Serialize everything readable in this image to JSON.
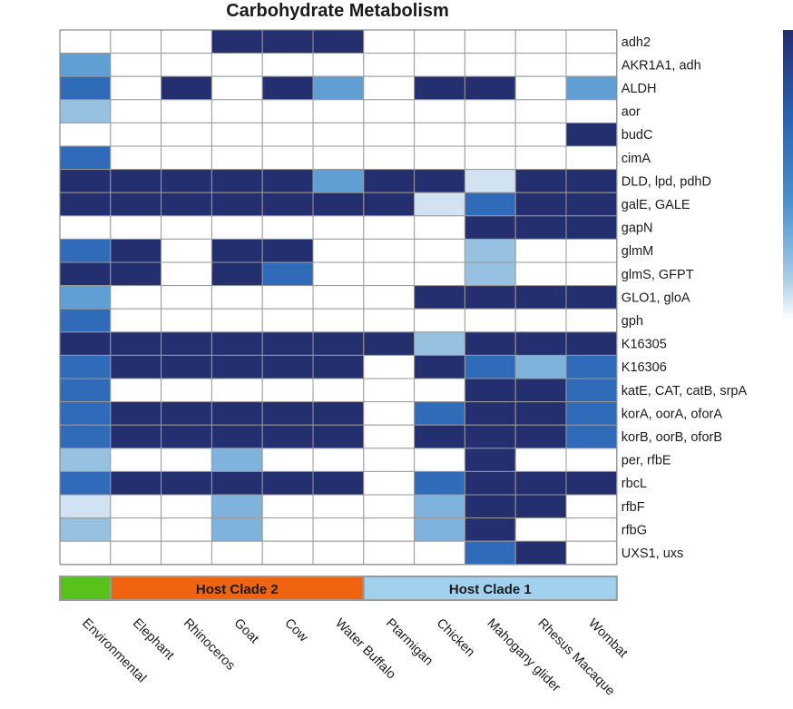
{
  "chart_data": {
    "type": "heatmap",
    "title": "Carbohydrate Metabolism",
    "columns": [
      "Environmental",
      "Elephant",
      "Rhinoceros",
      "Goat",
      "Cow",
      "Water Buffalo",
      "Ptarmigan",
      "Chicken",
      "Mahogany glider",
      "Rhesus Macaque",
      "Wombat"
    ],
    "rows": [
      "adh2",
      "AKR1A1, adh",
      "ALDH",
      "aor",
      "budC",
      "cimA",
      "DLD, lpd, pdhD",
      "galE, GALE",
      "gapN",
      "glmM",
      "glmS, GFPT",
      "GLO1, gloA",
      "gph",
      "K16305",
      "K16306",
      "katE, CAT, catB, srpA",
      "korA, oorA, oforA",
      "korB, oorB, oforB",
      "per, rfbE",
      "rbcL",
      "rfbF",
      "rfbG",
      "UXS1, uxs"
    ],
    "values": [
      [
        0,
        0,
        0,
        5,
        5,
        5,
        0,
        0,
        0,
        0,
        0
      ],
      [
        3,
        0,
        0,
        0,
        0,
        0,
        0,
        0,
        0,
        0,
        0
      ],
      [
        4,
        0,
        5,
        0,
        5,
        3,
        0,
        5,
        5,
        0,
        3
      ],
      [
        2,
        0,
        0,
        0,
        0,
        0,
        0,
        0,
        0,
        0,
        0
      ],
      [
        0,
        0,
        0,
        0,
        0,
        0,
        0,
        0,
        0,
        0,
        5
      ],
      [
        4,
        0,
        0,
        0,
        0,
        0,
        0,
        0,
        0,
        0,
        0
      ],
      [
        5,
        5,
        5,
        5,
        5,
        3,
        5,
        5,
        1,
        5,
        5
      ],
      [
        5,
        5,
        5,
        5,
        5,
        5,
        5,
        1,
        4,
        5,
        5
      ],
      [
        0,
        0,
        0,
        0,
        0,
        0,
        0,
        0,
        5,
        5,
        5
      ],
      [
        4,
        5,
        0,
        5,
        5,
        0,
        0,
        0,
        2,
        0,
        0
      ],
      [
        5,
        5,
        0,
        5,
        4,
        0,
        0,
        0,
        2,
        0,
        0
      ],
      [
        3,
        0,
        0,
        0,
        0,
        0,
        0,
        5,
        5,
        5,
        5
      ],
      [
        4,
        0,
        0,
        0,
        0,
        0,
        0,
        0,
        0,
        0,
        0
      ],
      [
        5,
        5,
        5,
        5,
        5,
        5,
        5,
        2,
        5,
        5,
        5
      ],
      [
        4,
        5,
        5,
        5,
        5,
        5,
        0,
        5,
        4,
        2.5,
        4
      ],
      [
        4,
        0,
        0,
        0,
        0,
        0,
        0,
        0,
        5,
        5,
        4
      ],
      [
        4,
        5,
        5,
        5,
        5,
        5,
        0,
        4,
        5,
        5,
        4
      ],
      [
        4,
        5,
        5,
        5,
        5,
        5,
        0,
        5,
        5,
        5,
        4
      ],
      [
        2,
        0,
        0,
        2.5,
        0,
        0,
        0,
        0,
        5,
        0,
        0
      ],
      [
        4,
        5,
        5,
        5,
        5,
        5,
        0,
        4,
        5,
        5,
        5
      ],
      [
        1,
        0,
        0,
        2.5,
        0,
        0,
        0,
        2.5,
        5,
        5,
        0
      ],
      [
        2,
        0,
        0,
        2.5,
        0,
        0,
        0,
        2.5,
        5,
        0,
        0
      ],
      [
        0,
        0,
        0,
        0,
        0,
        0,
        0,
        0,
        4,
        5,
        0
      ]
    ],
    "scale": {
      "min": 0,
      "max": 5,
      "colors": [
        "#ffffff",
        "#dce9f6",
        "#a6cbe5",
        "#7fb2dc",
        "#4a93cf",
        "#2a61b4",
        "#232f6e"
      ]
    },
    "clades": [
      {
        "label": "",
        "columns": [
          "Environmental"
        ],
        "color": "#56c21a"
      },
      {
        "label": "Host Clade 2",
        "columns": [
          "Elephant",
          "Rhinoceros",
          "Goat",
          "Cow",
          "Water Buffalo"
        ],
        "color": "#ee6410"
      },
      {
        "label": "Host Clade 1",
        "columns": [
          "Ptarmigan",
          "Chicken",
          "Mahogany glider",
          "Rhesus Macaque",
          "Wombat"
        ],
        "color": "#a1d1ec"
      }
    ]
  }
}
